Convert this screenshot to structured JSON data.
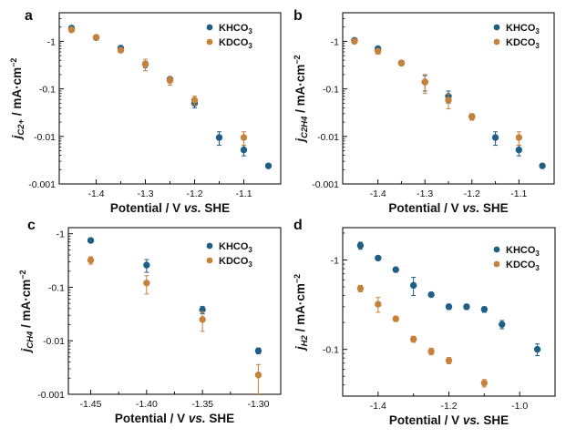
{
  "figure": {
    "colors": {
      "KHCO3": "#1e5f86",
      "KDCO3": "#c8813a"
    }
  },
  "chart_data": [
    {
      "panel": "a",
      "type": "scatter",
      "yscale": "log",
      "ylabel": {
        "main": "j",
        "sub": "C2+",
        "unit": " / mA·cm",
        "sup": "−2"
      },
      "xlabel": {
        "pre": "Potential / V ",
        "italic": "vs.",
        "post": " SHE"
      },
      "xlim": [
        -1.475,
        -1.025
      ],
      "ylim": [
        0.001,
        4
      ],
      "xticks": [
        -1.4,
        -1.3,
        -1.2,
        -1.1
      ],
      "xtick_labels": [
        "-1.4",
        "-1.3",
        "-1.2",
        "-1.1"
      ],
      "yticks": [
        1,
        0.1,
        0.01,
        0.001
      ],
      "ytick_labels": [
        "-1",
        "-0.1",
        "-0.01",
        "-0.001"
      ],
      "legend": {
        "position": "top-right",
        "entries": [
          {
            "main": "KHCO",
            "sub": "3"
          },
          {
            "main": "KDCO",
            "sub": "3"
          }
        ]
      },
      "series": [
        {
          "name": "KHCO3",
          "x": [
            -1.45,
            -1.4,
            -1.35,
            -1.3,
            -1.25,
            -1.2,
            -1.15,
            -1.1,
            -1.05
          ],
          "y": [
            1.9,
            1.2,
            0.72,
            0.33,
            0.16,
            0.05,
            0.0095,
            0.0052,
            0.0024
          ],
          "err": [
            0.15,
            0.08,
            0.06,
            0.05,
            0.02,
            0.01,
            0.003,
            0.0013,
            0.0002
          ]
        },
        {
          "name": "KDCO3",
          "x": [
            -1.45,
            -1.4,
            -1.35,
            -1.3,
            -1.25,
            -1.2,
            -1.1
          ],
          "y": [
            1.75,
            1.22,
            0.65,
            0.33,
            0.15,
            0.058,
            0.0095
          ],
          "err": [
            0.18,
            0.1,
            0.07,
            0.09,
            0.03,
            0.012,
            0.003
          ]
        }
      ]
    },
    {
      "panel": "b",
      "type": "scatter",
      "yscale": "log",
      "ylabel": {
        "main": "j",
        "sub": "C2H4",
        "unit": " / mA·cm",
        "sup": "−2"
      },
      "xlabel": {
        "pre": "Potential / V ",
        "italic": "vs.",
        "post": " SHE"
      },
      "xlim": [
        -1.475,
        -1.025
      ],
      "ylim": [
        0.001,
        4
      ],
      "xticks": [
        -1.4,
        -1.3,
        -1.2,
        -1.1
      ],
      "xtick_labels": [
        "-1.4",
        "-1.3",
        "-1.2",
        "-1.1"
      ],
      "yticks": [
        1,
        0.1,
        0.01,
        0.001
      ],
      "ytick_labels": [
        "-1",
        "-0.1",
        "-0.01",
        "-0.001"
      ],
      "legend": {
        "position": "top-right",
        "entries": [
          {
            "main": "KHCO",
            "sub": "3"
          },
          {
            "main": "KDCO",
            "sub": "3"
          }
        ]
      },
      "series": [
        {
          "name": "KHCO3",
          "x": [
            -1.45,
            -1.4,
            -1.35,
            -1.3,
            -1.25,
            -1.2,
            -1.15,
            -1.1,
            -1.05
          ],
          "y": [
            1.05,
            0.7,
            0.35,
            0.14,
            0.07,
            0.026,
            0.0095,
            0.0052,
            0.0024
          ],
          "err": [
            0.08,
            0.08,
            0.04,
            0.05,
            0.02,
            0.004,
            0.003,
            0.0013,
            0.0002
          ]
        },
        {
          "name": "KDCO3",
          "x": [
            -1.45,
            -1.4,
            -1.35,
            -1.3,
            -1.25,
            -1.2,
            -1.1
          ],
          "y": [
            1.0,
            0.62,
            0.35,
            0.14,
            0.058,
            0.026,
            0.0095
          ],
          "err": [
            0.1,
            0.08,
            0.04,
            0.06,
            0.02,
            0.004,
            0.003
          ]
        }
      ]
    },
    {
      "panel": "c",
      "type": "scatter",
      "yscale": "log",
      "ylabel": {
        "main": "j",
        "sub": "CH4",
        "unit": " / mA·cm",
        "sup": "−2"
      },
      "xlabel": {
        "pre": "Potential / V ",
        "italic": "vs.",
        "post": " SHE"
      },
      "xlim": [
        -1.47,
        -1.28
      ],
      "ylim": [
        0.001,
        1.3
      ],
      "xticks": [
        -1.45,
        -1.4,
        -1.35,
        -1.3
      ],
      "xtick_labels": [
        "-1.45",
        "-1.40",
        "-1.35",
        "-1.30"
      ],
      "yticks": [
        1,
        0.1,
        0.01,
        0.001
      ],
      "ytick_labels": [
        "-1",
        "-0.1",
        "-0.01",
        "-0.001"
      ],
      "legend": {
        "position": "top-right",
        "entries": [
          {
            "main": "KHCO",
            "sub": "3"
          },
          {
            "main": "KDCO",
            "sub": "3"
          }
        ]
      },
      "series": [
        {
          "name": "KHCO3",
          "x": [
            -1.45,
            -1.4,
            -1.35,
            -1.3
          ],
          "y": [
            0.75,
            0.26,
            0.038,
            0.0065
          ],
          "err": [
            0.04,
            0.07,
            0.006,
            0.0008
          ]
        },
        {
          "name": "KDCO3",
          "x": [
            -1.45,
            -1.4,
            -1.35,
            -1.3
          ],
          "y": [
            0.32,
            0.12,
            0.025,
            0.0023
          ],
          "err": [
            0.05,
            0.045,
            0.01,
            0.0013
          ]
        }
      ]
    },
    {
      "panel": "d",
      "type": "scatter",
      "yscale": "log",
      "ylabel": {
        "main": "j",
        "sub": "H2",
        "unit": " / mA·cm",
        "sup": "−2"
      },
      "xlabel": {
        "pre": "Potential / V ",
        "italic": "vs.",
        "post": " SHE"
      },
      "xlim": [
        -1.5,
        -0.9
      ],
      "ylim": [
        0.03,
        2.3
      ],
      "xticks": [
        -1.4,
        -1.2,
        -1.0
      ],
      "xtick_labels": [
        "-1.4",
        "-1.2",
        "-1.0"
      ],
      "yticks": [
        1,
        0.1
      ],
      "ytick_labels": [
        "-1",
        "-0.1"
      ],
      "legend": {
        "position": "top-right",
        "entries": [
          {
            "main": "KHCO",
            "sub": "3"
          },
          {
            "main": "KDCO",
            "sub": "3"
          }
        ]
      },
      "series": [
        {
          "name": "KHCO3",
          "x": [
            -1.45,
            -1.4,
            -1.35,
            -1.3,
            -1.25,
            -1.2,
            -1.15,
            -1.1,
            -1.05,
            -0.95
          ],
          "y": [
            1.45,
            1.05,
            0.78,
            0.52,
            0.41,
            0.3,
            0.3,
            0.28,
            0.19,
            0.1
          ],
          "err": [
            0.13,
            0.03,
            0.03,
            0.12,
            0.02,
            0.02,
            0.02,
            0.02,
            0.02,
            0.015
          ]
        },
        {
          "name": "KDCO3",
          "x": [
            -1.45,
            -1.4,
            -1.35,
            -1.3,
            -1.25,
            -1.2,
            -1.1
          ],
          "y": [
            0.48,
            0.32,
            0.22,
            0.13,
            0.095,
            0.075,
            0.042
          ],
          "err": [
            0.04,
            0.06,
            0.015,
            0.01,
            0.008,
            0.006,
            0.004
          ]
        }
      ]
    }
  ]
}
